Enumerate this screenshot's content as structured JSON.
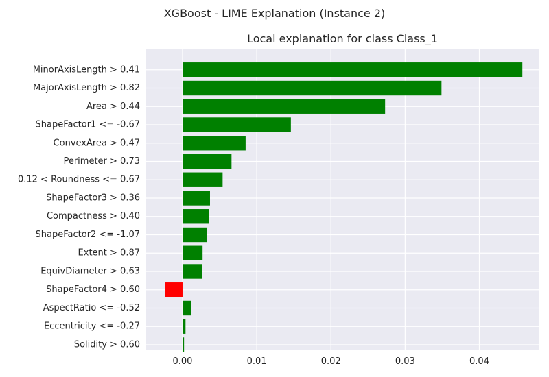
{
  "figure": {
    "suptitle": "XGBoost - LIME Explanation (Instance 2)"
  },
  "chart_data": {
    "type": "bar",
    "orientation": "horizontal",
    "title": "Local explanation for class Class_1",
    "xlabel": "",
    "ylabel": "",
    "xlim": [
      -0.0049,
      0.048
    ],
    "xticks": [
      0.0,
      0.01,
      0.02,
      0.03,
      0.04
    ],
    "xtick_labels": [
      "0.00",
      "0.01",
      "0.02",
      "0.03",
      "0.04"
    ],
    "grid": true,
    "colors": {
      "positive": "#008000",
      "negative": "#ff0000",
      "axes_background": "#eaeaf2",
      "grid": "#ffffff"
    },
    "categories": [
      "MinorAxisLength > 0.41",
      "MajorAxisLength > 0.82",
      "Area > 0.44",
      "ShapeFactor1 <= -0.67",
      "ConvexArea > 0.47",
      "Perimeter > 0.73",
      "0.12 < Roundness <= 0.67",
      "ShapeFactor3 > 0.36",
      "Compactness > 0.40",
      "ShapeFactor2 <= -1.07",
      "Extent > 0.87",
      "EquivDiameter > 0.63",
      "ShapeFactor4 > 0.60",
      "AspectRatio <= -0.52",
      "Eccentricity <= -0.27",
      "Solidity > 0.60"
    ],
    "values": [
      0.0458,
      0.0349,
      0.0273,
      0.0146,
      0.0085,
      0.0066,
      0.0054,
      0.0037,
      0.0036,
      0.0033,
      0.0027,
      0.0026,
      -0.0024,
      0.0012,
      0.0004,
      0.0002
    ]
  }
}
